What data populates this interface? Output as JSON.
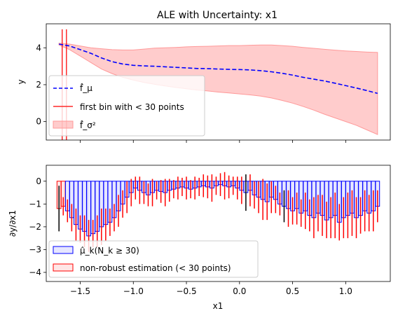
{
  "chart_data": [
    {
      "type": "line",
      "title": "ALE with Uncertainty: x1",
      "ylabel": "y",
      "xlim": [
        -1.82,
        1.42
      ],
      "ylim": [
        -1.0,
        5.3
      ],
      "yticks": [
        0,
        2,
        4
      ],
      "xticks": [
        -1.5,
        -1.0,
        -0.5,
        0.0,
        0.5,
        1.0
      ],
      "grid": false,
      "legend_position": "lower-left",
      "colors": {
        "mean": "#0000ff",
        "band": "#ff9999",
        "bin_marker": "#ff2a2a"
      },
      "series": [
        {
          "name": "f̂_μ",
          "style": "dashed",
          "x": [
            -1.7,
            -1.6,
            -1.5,
            -1.4,
            -1.3,
            -1.2,
            -1.1,
            -1.0,
            -0.9,
            -0.8,
            -0.7,
            -0.6,
            -0.5,
            -0.4,
            -0.3,
            -0.2,
            -0.1,
            0.0,
            0.1,
            0.2,
            0.3,
            0.4,
            0.5,
            0.6,
            0.7,
            0.8,
            0.9,
            1.0,
            1.1,
            1.2,
            1.3
          ],
          "y": [
            4.2,
            4.1,
            3.9,
            3.7,
            3.45,
            3.25,
            3.12,
            3.05,
            3.02,
            3.0,
            2.97,
            2.94,
            2.91,
            2.88,
            2.87,
            2.85,
            2.83,
            2.82,
            2.8,
            2.76,
            2.7,
            2.62,
            2.52,
            2.4,
            2.3,
            2.2,
            2.08,
            1.95,
            1.82,
            1.68,
            1.53
          ]
        },
        {
          "name": "f̂_σ²",
          "style": "band",
          "x": [
            -1.7,
            -1.6,
            -1.5,
            -1.4,
            -1.3,
            -1.2,
            -1.1,
            -1.0,
            -0.9,
            -0.8,
            -0.7,
            -0.6,
            -0.5,
            -0.4,
            -0.3,
            -0.2,
            -0.1,
            0.0,
            0.1,
            0.2,
            0.3,
            0.4,
            0.5,
            0.6,
            0.7,
            0.8,
            0.9,
            1.0,
            1.1,
            1.2,
            1.3
          ],
          "upper": [
            4.25,
            4.2,
            4.1,
            4.0,
            3.95,
            3.9,
            3.88,
            3.88,
            3.93,
            3.98,
            4.0,
            4.02,
            4.05,
            4.07,
            4.08,
            4.1,
            4.12,
            4.12,
            4.14,
            4.15,
            4.15,
            4.12,
            4.08,
            4.02,
            3.97,
            3.92,
            3.87,
            3.83,
            3.8,
            3.77,
            3.75
          ],
          "lower": [
            4.15,
            3.9,
            3.55,
            3.2,
            2.85,
            2.6,
            2.4,
            2.25,
            2.12,
            2.02,
            1.93,
            1.85,
            1.78,
            1.71,
            1.66,
            1.6,
            1.55,
            1.5,
            1.45,
            1.38,
            1.28,
            1.15,
            1.0,
            0.82,
            0.62,
            0.4,
            0.2,
            0.0,
            -0.2,
            -0.45,
            -0.7
          ]
        },
        {
          "name": "first bin with < 30 points",
          "style": "vline",
          "x": [
            -1.67,
            -1.63
          ]
        }
      ]
    },
    {
      "type": "bar",
      "ylabel": "∂y/∂x1",
      "xlabel": "x1",
      "xlim": [
        -1.82,
        1.42
      ],
      "ylim": [
        -4.4,
        0.7
      ],
      "yticks": [
        0,
        -1,
        -2,
        -3,
        -4
      ],
      "xticks": [
        -1.5,
        -1.0,
        -0.5,
        0.0,
        0.5,
        1.0
      ],
      "grid": false,
      "legend_position": "lower-left",
      "colors": {
        "robust": "#0000ff",
        "robust_fill": "#e6e6ff",
        "nonrobust": "#ff0000",
        "std": "#ff0000",
        "std_alt": "#000000"
      },
      "bar_width": 0.038,
      "series": [
        {
          "name": "μ̂_k(N_k ≥ 30)",
          "role": "robust"
        },
        {
          "name": "non-robust estimation (< 30 points)",
          "role": "nonrobust"
        }
      ],
      "bins": {
        "x": [
          -1.7,
          -1.66,
          -1.62,
          -1.58,
          -1.54,
          -1.5,
          -1.46,
          -1.42,
          -1.38,
          -1.34,
          -1.3,
          -1.26,
          -1.22,
          -1.18,
          -1.14,
          -1.1,
          -1.06,
          -1.02,
          -0.98,
          -0.94,
          -0.9,
          -0.86,
          -0.82,
          -0.78,
          -0.74,
          -0.7,
          -0.66,
          -0.62,
          -0.58,
          -0.54,
          -0.5,
          -0.46,
          -0.42,
          -0.38,
          -0.34,
          -0.3,
          -0.26,
          -0.22,
          -0.18,
          -0.14,
          -0.1,
          -0.06,
          -0.02,
          0.02,
          0.06,
          0.1,
          0.14,
          0.18,
          0.22,
          0.26,
          0.3,
          0.34,
          0.38,
          0.42,
          0.46,
          0.5,
          0.54,
          0.58,
          0.62,
          0.66,
          0.7,
          0.74,
          0.78,
          0.82,
          0.86,
          0.9,
          0.94,
          0.98,
          1.02,
          1.06,
          1.1,
          1.14,
          1.18,
          1.22,
          1.26,
          1.3
        ],
        "mean": [
          -1.2,
          -1.1,
          -1.3,
          -1.6,
          -1.9,
          -2.1,
          -2.2,
          -2.4,
          -2.3,
          -2.2,
          -2.0,
          -1.9,
          -1.8,
          -1.6,
          -1.3,
          -1.0,
          -0.7,
          -0.5,
          -0.3,
          -0.4,
          -0.5,
          -0.6,
          -0.5,
          -0.4,
          -0.45,
          -0.5,
          -0.4,
          -0.35,
          -0.3,
          -0.25,
          -0.3,
          -0.35,
          -0.3,
          -0.25,
          -0.2,
          -0.25,
          -0.3,
          -0.2,
          -0.15,
          -0.2,
          -0.25,
          -0.2,
          -0.3,
          -0.4,
          -0.5,
          -0.4,
          -0.6,
          -0.7,
          -0.8,
          -0.9,
          -0.7,
          -0.8,
          -1.0,
          -1.1,
          -1.2,
          -1.3,
          -1.2,
          -1.4,
          -1.3,
          -1.5,
          -1.6,
          -1.4,
          -1.5,
          -1.7,
          -1.6,
          -1.5,
          -1.8,
          -1.6,
          -1.5,
          -1.4,
          -1.6,
          -1.5,
          -1.3,
          -1.4,
          -1.3,
          -1.1
        ],
        "err": [
          1.0,
          0.4,
          0.5,
          0.6,
          0.7,
          0.6,
          0.7,
          0.7,
          0.6,
          0.7,
          0.8,
          0.7,
          0.6,
          0.6,
          0.7,
          0.6,
          0.7,
          0.6,
          0.5,
          0.6,
          0.5,
          0.5,
          0.6,
          0.4,
          0.5,
          0.6,
          0.5,
          0.4,
          0.5,
          0.4,
          0.5,
          0.4,
          0.5,
          0.4,
          0.5,
          0.5,
          0.6,
          0.4,
          0.5,
          0.6,
          0.5,
          0.4,
          0.5,
          0.6,
          0.8,
          0.7,
          0.6,
          0.7,
          0.9,
          0.8,
          0.7,
          0.6,
          0.5,
          0.7,
          0.8,
          0.6,
          0.7,
          0.6,
          0.8,
          0.7,
          0.9,
          0.8,
          0.9,
          0.8,
          0.9,
          1.0,
          0.8,
          0.9,
          1.0,
          1.0,
          0.9,
          0.8,
          0.9,
          0.8,
          0.9,
          0.7
        ],
        "robust": [
          false,
          false,
          true,
          true,
          true,
          true,
          true,
          true,
          true,
          true,
          true,
          true,
          true,
          true,
          true,
          true,
          true,
          true,
          true,
          true,
          true,
          true,
          true,
          true,
          true,
          true,
          true,
          true,
          true,
          true,
          true,
          true,
          true,
          true,
          true,
          true,
          true,
          true,
          true,
          true,
          true,
          true,
          true,
          true,
          true,
          true,
          true,
          true,
          true,
          true,
          true,
          true,
          true,
          true,
          true,
          true,
          true,
          true,
          true,
          true,
          true,
          true,
          true,
          true,
          true,
          true,
          true,
          true,
          true,
          true,
          true,
          true,
          true,
          true,
          true,
          true
        ],
        "err_black": [
          true,
          false,
          false,
          false,
          false,
          false,
          false,
          false,
          false,
          false,
          false,
          false,
          false,
          false,
          false,
          false,
          false,
          false,
          false,
          false,
          false,
          false,
          false,
          false,
          false,
          false,
          false,
          false,
          false,
          false,
          false,
          false,
          false,
          false,
          false,
          false,
          false,
          false,
          false,
          false,
          false,
          false,
          false,
          false,
          true,
          false,
          false,
          false,
          false,
          false,
          false,
          false,
          false,
          true,
          false,
          false,
          false,
          false,
          false,
          false,
          false,
          false,
          false,
          false,
          false,
          false,
          false,
          false,
          false,
          false,
          false,
          false,
          false,
          false,
          false,
          false
        ]
      }
    }
  ]
}
